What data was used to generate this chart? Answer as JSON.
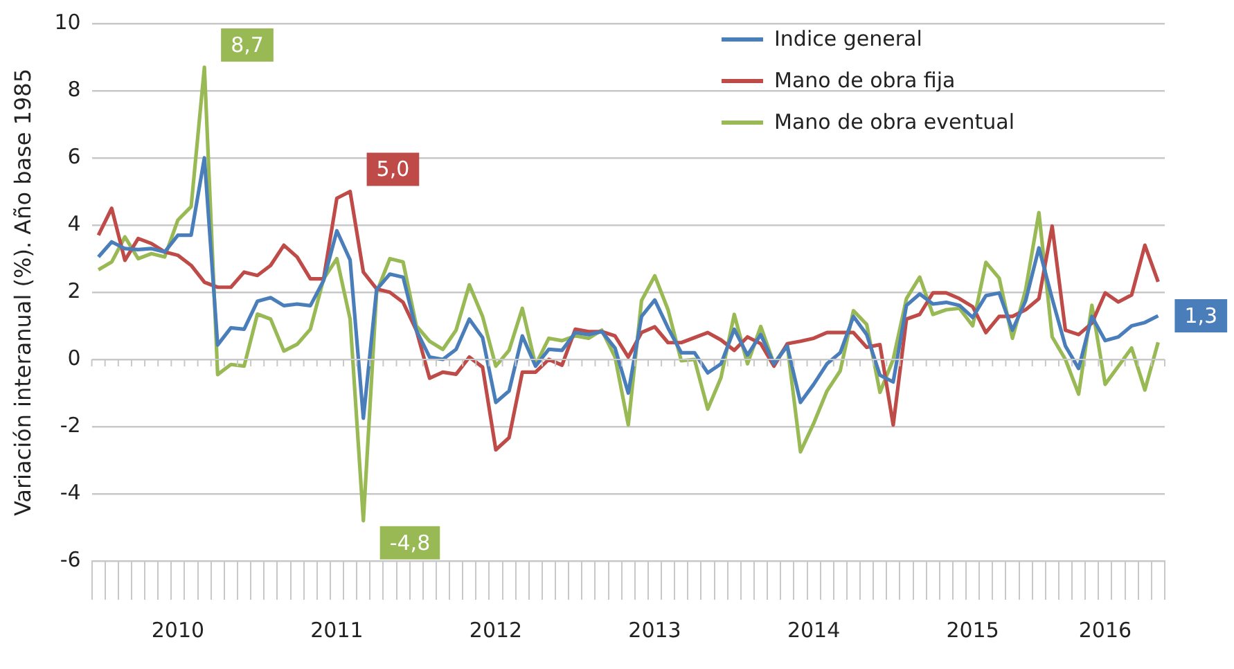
{
  "chart_data": {
    "type": "line",
    "ylabel": "Variación interanual (%). Año base 1985",
    "categories": [
      null,
      null,
      null,
      null,
      null,
      null,
      "2010",
      null,
      null,
      null,
      null,
      null,
      null,
      null,
      null,
      null,
      null,
      null,
      "2011",
      null,
      null,
      null,
      null,
      null,
      null,
      null,
      null,
      null,
      null,
      null,
      "2012",
      null,
      null,
      null,
      null,
      null,
      null,
      null,
      null,
      null,
      null,
      null,
      "2013",
      null,
      null,
      null,
      null,
      null,
      null,
      null,
      null,
      null,
      null,
      null,
      "2014",
      null,
      null,
      null,
      null,
      null,
      null,
      null,
      null,
      null,
      null,
      null,
      "2015",
      null,
      null,
      null,
      null,
      null,
      null,
      null,
      null,
      null,
      "2016",
      null,
      null,
      null,
      null
    ],
    "series": [
      {
        "name": "Indice general",
        "color": "#4a7ebb",
        "values": [
          3.05,
          3.5,
          3.3,
          3.27,
          3.3,
          3.2,
          3.7,
          3.7,
          6.0,
          0.43,
          0.94,
          0.9,
          1.73,
          1.84,
          1.6,
          1.65,
          1.6,
          2.35,
          3.83,
          2.96,
          -1.75,
          2.08,
          2.54,
          2.45,
          0.87,
          0.07,
          0,
          0.3,
          1.2,
          0.65,
          -1.28,
          -0.94,
          0.7,
          -0.2,
          0.3,
          0.27,
          0.8,
          0.74,
          0.83,
          0.34,
          -1.0,
          1.28,
          1.77,
          0.94,
          0.2,
          0.2,
          -0.4,
          -0.13,
          0.9,
          0.13,
          0.74,
          -0.13,
          0.4,
          -1.28,
          -0.74,
          -0.13,
          0.2,
          1.28,
          0.74,
          -0.47,
          -0.67,
          1.61,
          1.95,
          1.65,
          1.7,
          1.61,
          1.25,
          1.9,
          1.98,
          0.87,
          1.75,
          3.32,
          1.81,
          0.4,
          -0.27,
          1.28,
          0.56,
          0.67,
          1.0,
          1.1,
          1.3
        ],
        "value_labels": [
          null,
          null,
          null,
          null,
          null,
          null,
          null,
          null,
          null,
          null,
          null,
          null,
          null,
          null,
          null,
          null,
          null,
          null,
          null,
          null,
          null,
          null,
          null,
          null,
          null,
          null,
          null,
          null,
          null,
          null,
          null,
          null,
          null,
          null,
          null,
          null,
          null,
          null,
          null,
          null,
          null,
          null,
          null,
          null,
          null,
          null,
          null,
          null,
          null,
          null,
          null,
          null,
          null,
          null,
          null,
          null,
          null,
          null,
          null,
          null,
          null,
          null,
          null,
          null,
          null,
          null,
          null,
          null,
          null,
          null,
          null,
          null,
          null,
          null,
          null,
          null,
          null,
          null,
          null,
          null,
          "1,3"
        ]
      },
      {
        "name": "Mano de obra fija",
        "color": "#be4b48",
        "values": [
          3.7,
          4.5,
          2.95,
          3.6,
          3.45,
          3.2,
          3.1,
          2.8,
          2.3,
          2.15,
          2.15,
          2.6,
          2.5,
          2.8,
          3.4,
          3.05,
          2.4,
          2.4,
          4.8,
          5.0,
          2.6,
          2.1,
          2.0,
          1.7,
          0.87,
          -0.56,
          -0.38,
          -0.44,
          0.07,
          -0.23,
          -2.69,
          -2.33,
          -0.38,
          -0.38,
          0,
          -0.17,
          0.9,
          0.83,
          0.83,
          0.7,
          0.07,
          0.8,
          0.97,
          0.5,
          0.5,
          0.65,
          0.8,
          0.58,
          0.27,
          0.67,
          0.47,
          -0.2,
          0.47,
          0.54,
          0.63,
          0.8,
          0.8,
          0.8,
          0.36,
          0.44,
          -1.95,
          1.2,
          1.34,
          1.98,
          1.98,
          1.81,
          1.57,
          0.8,
          1.28,
          1.28,
          1.48,
          1.81,
          3.97,
          0.87,
          0.74,
          1.08,
          1.98,
          1.71,
          1.92,
          3.4,
          2.31
        ],
        "value_labels": [
          null,
          null,
          null,
          null,
          null,
          null,
          null,
          null,
          null,
          null,
          null,
          null,
          null,
          null,
          null,
          null,
          null,
          null,
          null,
          "5,0",
          null,
          null,
          null,
          null,
          null,
          null,
          null,
          null,
          null,
          null,
          null,
          null,
          null,
          null,
          null,
          null,
          null,
          null,
          null,
          null,
          null,
          null,
          null,
          null,
          null,
          null,
          null,
          null,
          null,
          null,
          null,
          null,
          null,
          null,
          null,
          null,
          null,
          null,
          null,
          null,
          null,
          null,
          null,
          null,
          null,
          null,
          null,
          null,
          null,
          null,
          null,
          null,
          null,
          null,
          null,
          null,
          null,
          null,
          null,
          null,
          null
        ]
      },
      {
        "name": "Mano de obra eventual",
        "color": "#98b954",
        "values": [
          2.67,
          2.9,
          3.65,
          3.0,
          3.15,
          3.05,
          4.15,
          4.55,
          8.7,
          -0.45,
          -0.15,
          -0.2,
          1.35,
          1.2,
          0.25,
          0.45,
          0.9,
          2.4,
          3.0,
          1.2,
          -4.8,
          2.0,
          3.0,
          2.9,
          1.0,
          0.54,
          0.3,
          0.87,
          2.22,
          1.28,
          -0.2,
          0.27,
          1.52,
          -0.17,
          0.63,
          0.56,
          0.7,
          0.63,
          0.87,
          0.07,
          -1.95,
          1.75,
          2.49,
          1.48,
          -0.04,
          0,
          -1.48,
          -0.54,
          1.34,
          -0.13,
          0.98,
          -0.13,
          0.44,
          -2.75,
          -1.9,
          -0.94,
          -0.34,
          1.45,
          1.04,
          -0.98,
          0,
          1.81,
          2.45,
          1.34,
          1.48,
          1.52,
          1.0,
          2.89,
          2.42,
          0.63,
          2.08,
          4.37,
          0.67,
          0,
          -1.03,
          1.61,
          -0.74,
          -0.2,
          0.34,
          -0.91,
          0.51
        ],
        "value_labels": [
          null,
          null,
          null,
          null,
          null,
          null,
          null,
          null,
          "8,7",
          null,
          null,
          null,
          null,
          null,
          null,
          null,
          null,
          null,
          null,
          null,
          "-4,8",
          null,
          null,
          null,
          null,
          null,
          null,
          null,
          null,
          null,
          null,
          null,
          null,
          null,
          null,
          null,
          null,
          null,
          null,
          null,
          null,
          null,
          null,
          null,
          null,
          null,
          null,
          null,
          null,
          null,
          null,
          null,
          null,
          null,
          null,
          null,
          null,
          null,
          null,
          null,
          null,
          null,
          null,
          null,
          null,
          null,
          null,
          null,
          null,
          null,
          null,
          null,
          null,
          null,
          null,
          null,
          null,
          null,
          null,
          null,
          null
        ]
      }
    ],
    "ylim": [
      -6,
      10
    ],
    "yticks": [
      -6,
      -4,
      -2,
      0,
      2,
      4,
      6,
      8,
      10
    ],
    "grid": "y",
    "legend": "top right",
    "marker": "none",
    "line_style": "solid"
  }
}
